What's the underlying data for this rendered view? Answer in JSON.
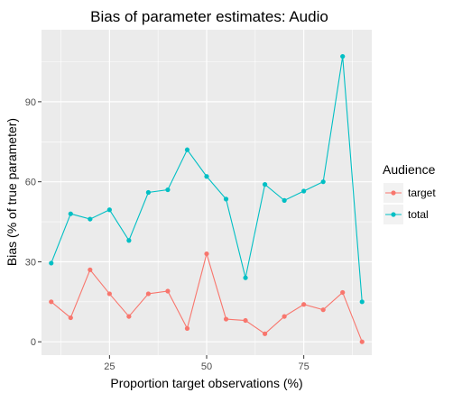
{
  "chart_data": {
    "type": "line",
    "title": "Bias of parameter estimates: Audio",
    "xlabel": "Proportion target observations (%)",
    "ylabel": "Bias (% of true parameter)",
    "xlim": [
      7.5,
      92.5
    ],
    "ylim": [
      -5,
      117
    ],
    "x_ticks": [
      25,
      50,
      75
    ],
    "y_ticks": [
      0,
      30,
      60,
      90
    ],
    "x_minor": [
      12.5,
      37.5,
      62.5,
      87.5
    ],
    "y_minor": [
      15,
      45,
      75,
      105
    ],
    "grid": true,
    "legend": {
      "title": "Audience",
      "position": "right"
    },
    "series": [
      {
        "name": "target",
        "color": "#F8766D",
        "x": [
          10,
          15,
          20,
          25,
          30,
          35,
          40,
          45,
          50,
          55,
          60,
          65,
          70,
          75,
          80,
          85,
          90
        ],
        "values": [
          15,
          9,
          27,
          18,
          9.5,
          18,
          19,
          5,
          33,
          8.5,
          8,
          3,
          9.5,
          14,
          12,
          18.5,
          0
        ]
      },
      {
        "name": "total",
        "color": "#00BFC4",
        "x": [
          10,
          15,
          20,
          25,
          30,
          35,
          40,
          45,
          50,
          55,
          60,
          65,
          70,
          75,
          80,
          85,
          90
        ],
        "values": [
          29.5,
          48,
          46,
          49.5,
          38,
          56,
          57,
          72,
          62,
          53.5,
          24,
          59,
          53,
          56.5,
          60,
          107,
          15
        ]
      }
    ]
  }
}
